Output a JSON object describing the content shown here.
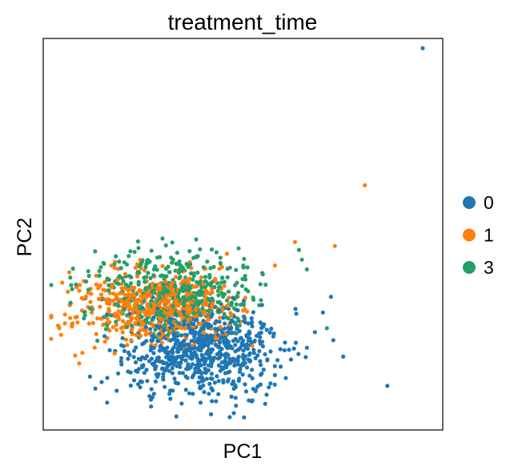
{
  "chart_data": {
    "type": "scatter",
    "title": "treatment_time",
    "xlabel": "PC1",
    "ylabel": "PC2",
    "xlim": [
      0,
      100
    ],
    "ylim": [
      0,
      100
    ],
    "show_ticks": false,
    "grid": false,
    "legend_position": "right",
    "series": [
      {
        "name": "0",
        "color": "#1f77b4",
        "cluster": {
          "cx": 40,
          "cy": 20,
          "sx": 10,
          "sy": 5.5,
          "n": 700,
          "seed": 11
        },
        "points": [
          [
            95,
            97.5
          ],
          [
            62,
            18
          ],
          [
            66,
            21
          ],
          [
            68,
            25
          ],
          [
            72,
            34
          ],
          [
            70,
            30
          ],
          [
            58,
            14
          ],
          [
            16,
            7
          ],
          [
            27,
            6
          ],
          [
            42,
            4
          ]
        ]
      },
      {
        "name": "1",
        "color": "#ff7f0e",
        "cluster": {
          "cx": 28,
          "cy": 31,
          "sx": 9.5,
          "sy": 4.5,
          "n": 550,
          "seed": 23
        },
        "points": [
          [
            80.5,
            62.5
          ],
          [
            73,
            47
          ],
          [
            63,
            48
          ],
          [
            4,
            26
          ],
          [
            8,
            19
          ],
          [
            9,
            17
          ],
          [
            46,
            45
          ],
          [
            58,
            42
          ]
        ]
      },
      {
        "name": "3",
        "color": "#279e68",
        "cluster": {
          "cx": 33,
          "cy": 35,
          "sx": 10.5,
          "sy": 5,
          "n": 500,
          "seed": 37
        },
        "points": [
          [
            7,
            37
          ],
          [
            19,
            43
          ],
          [
            26,
            43
          ],
          [
            32,
            44
          ],
          [
            64,
            46
          ],
          [
            66,
            41
          ],
          [
            71,
            26
          ],
          [
            18,
            38
          ]
        ]
      }
    ]
  }
}
